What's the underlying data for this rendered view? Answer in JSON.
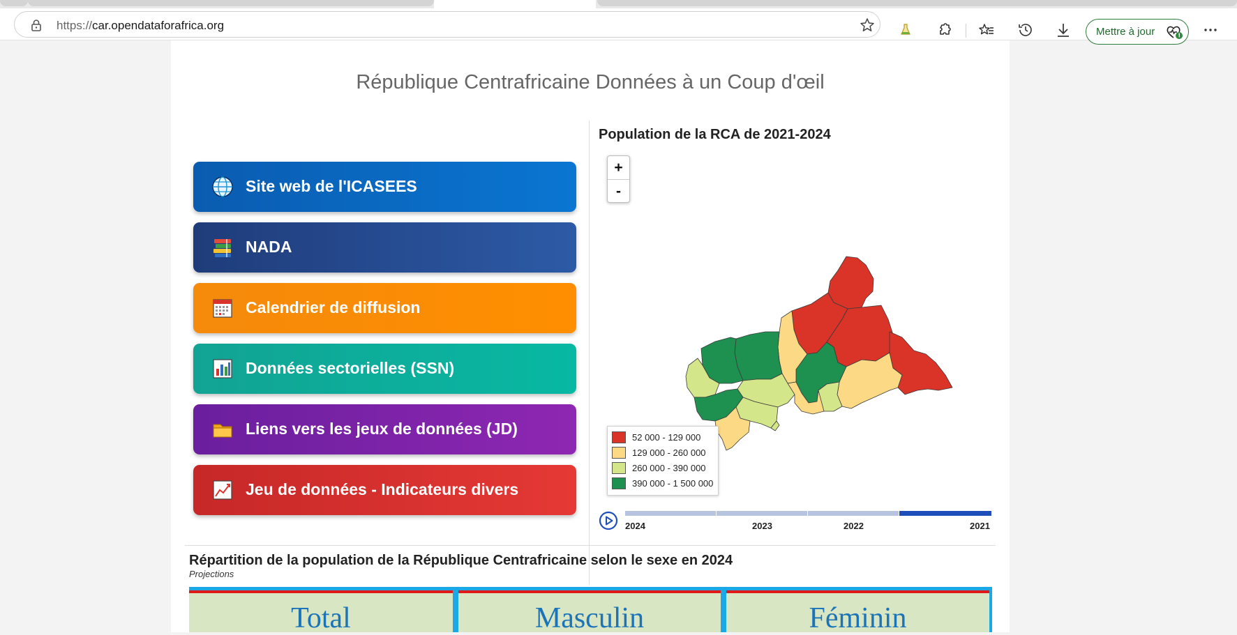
{
  "browser": {
    "url_protocol": "https://",
    "url_host": "car.opendataforafrica.org",
    "update_button_label": "Mettre à jour"
  },
  "page": {
    "title": "République Centrafricaine Données à un Coup d'œil",
    "links": [
      {
        "label": "Site web de l'ICASEES",
        "icon": "globe-icon",
        "color_from": "#0a5cb0",
        "color_to": "#0a76d2"
      },
      {
        "label": "NADA",
        "icon": "books-icon",
        "color_from": "#1f3c7a",
        "color_to": "#2d5aa6"
      },
      {
        "label": "Calendrier de diffusion",
        "icon": "calendar-icon",
        "color_from": "#f58a0b",
        "color_to": "#ff8f00"
      },
      {
        "label": "Données sectorielles (SSN)",
        "icon": "bar-chart-icon",
        "color_from": "#12a394",
        "color_to": "#08b8a2"
      },
      {
        "label": "Liens vers les jeux de données (JD)",
        "icon": "folder-icon",
        "color_from": "#6a1f9e",
        "color_to": "#8e27b2"
      },
      {
        "label": "Jeu de données - Indicateurs divers",
        "icon": "trend-chart-icon",
        "color_from": "#c62828",
        "color_to": "#e53935"
      }
    ]
  },
  "map": {
    "title": "Population de la RCA de 2021-2024",
    "zoom_in": "+",
    "zoom_out": "-",
    "legend": [
      {
        "label": "52 000 - 129 000",
        "color": "#d93427"
      },
      {
        "label": "129 000 - 260 000",
        "color": "#fbd985"
      },
      {
        "label": "260 000 - 390 000",
        "color": "#d3e68a"
      },
      {
        "label": "390 000 - 1 500 000",
        "color": "#1e9150"
      }
    ],
    "timeline_years": [
      "2024",
      "2023",
      "2022",
      "2021"
    ],
    "selected_year": "2021"
  },
  "section": {
    "title": "Répartition de la population de la République Centrafricaine selon le sexe en 2024",
    "subtitle": "Projections",
    "columns": [
      "Total",
      "Masculin",
      "Féminin"
    ]
  }
}
